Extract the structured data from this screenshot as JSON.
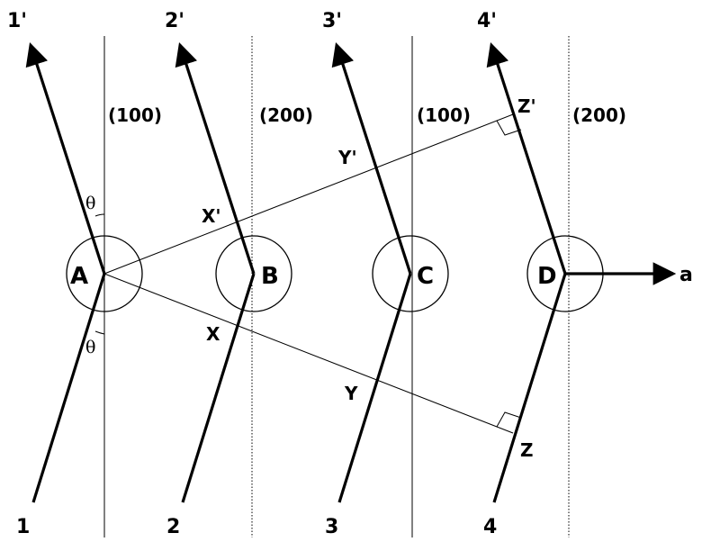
{
  "diagram": {
    "colors": {
      "ink": "#000000",
      "background": "#ffffff"
    },
    "atoms": [
      "A",
      "B",
      "C",
      "D"
    ],
    "incident_labels": [
      "1",
      "2",
      "3",
      "4"
    ],
    "scattered_labels": [
      "1'",
      "2'",
      "3'",
      "4'"
    ],
    "plane_labels": [
      "(100)",
      "(200)",
      "(100)",
      "(200)"
    ],
    "wavefront_points": {
      "X": "X",
      "X_prime": "X'",
      "Y": "Y",
      "Y_prime": "Y'",
      "Z": "Z",
      "Z_prime": "Z'"
    },
    "angle_symbol": "θ",
    "axis_label": "a"
  }
}
